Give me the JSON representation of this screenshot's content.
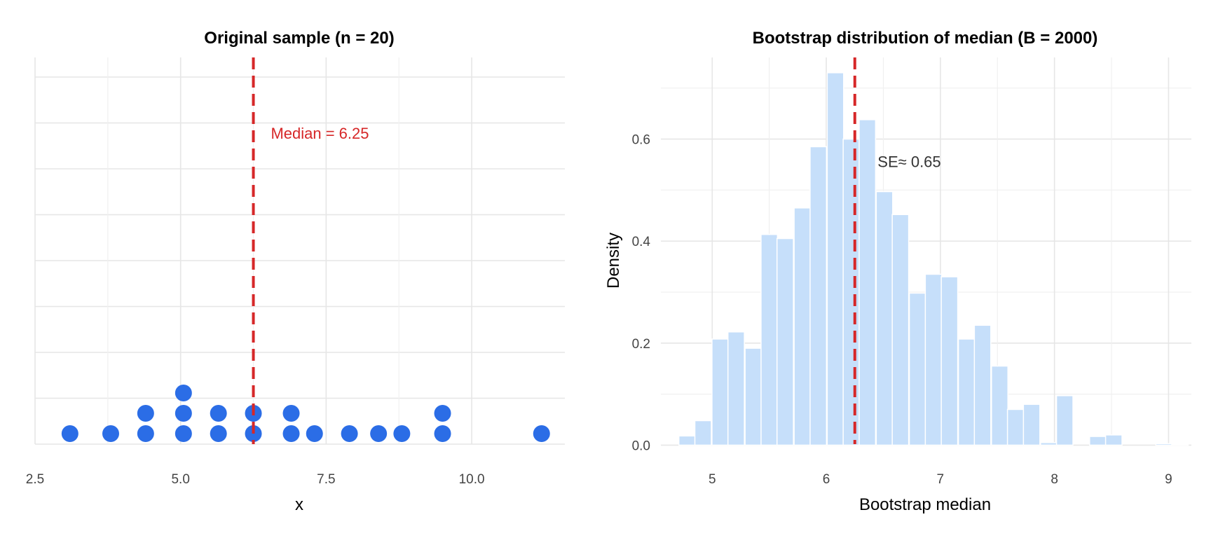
{
  "chart_data": [
    {
      "type": "scatter",
      "variant": "dot-stack",
      "title": "Original sample (n = 20)",
      "xlabel": "x",
      "ylabel": "",
      "xlim": [
        2.5,
        11.6
      ],
      "xticks": [
        2.5,
        5.0,
        7.5,
        10.0
      ],
      "xtick_labels": [
        "2.5",
        "5.0",
        "7.5",
        "10.0"
      ],
      "grid": true,
      "point_color": "#2b6de6",
      "points": [
        {
          "x": 3.1,
          "level": 1
        },
        {
          "x": 3.8,
          "level": 1
        },
        {
          "x": 4.4,
          "level": 1
        },
        {
          "x": 4.4,
          "level": 2
        },
        {
          "x": 5.05,
          "level": 1
        },
        {
          "x": 5.05,
          "level": 2
        },
        {
          "x": 5.05,
          "level": 3
        },
        {
          "x": 5.65,
          "level": 1
        },
        {
          "x": 5.65,
          "level": 2
        },
        {
          "x": 6.25,
          "level": 1
        },
        {
          "x": 6.25,
          "level": 2
        },
        {
          "x": 6.9,
          "level": 1
        },
        {
          "x": 6.9,
          "level": 2
        },
        {
          "x": 7.3,
          "level": 1
        },
        {
          "x": 7.9,
          "level": 1
        },
        {
          "x": 8.4,
          "level": 1
        },
        {
          "x": 8.8,
          "level": 1
        },
        {
          "x": 9.5,
          "level": 1
        },
        {
          "x": 9.5,
          "level": 2
        },
        {
          "x": 11.2,
          "level": 1
        }
      ],
      "reference_line": {
        "x": 6.25,
        "color": "#d62728",
        "style": "dashed"
      },
      "annotation": {
        "text": "Median = 6.25",
        "x": 6.55,
        "color": "#d62728"
      }
    },
    {
      "type": "bar",
      "variant": "histogram",
      "title": "Bootstrap distribution of median (B = 2000)",
      "xlabel": "Bootstrap median",
      "ylabel": "Density",
      "xlim": [
        4.55,
        9.2
      ],
      "ylim": [
        -0.02,
        0.76
      ],
      "xticks": [
        5,
        6,
        7,
        8,
        9
      ],
      "xtick_labels": [
        "5",
        "6",
        "7",
        "8",
        "9"
      ],
      "yticks": [
        0.0,
        0.2,
        0.4,
        0.6
      ],
      "ytick_labels": [
        "0.0",
        "0.2",
        "0.4",
        "0.6"
      ],
      "grid": true,
      "bar_color": "#c6dffa",
      "bin_width": 0.144,
      "bins": [
        {
          "x": 4.78,
          "density": 0.018
        },
        {
          "x": 4.92,
          "density": 0.048
        },
        {
          "x": 5.07,
          "density": 0.208
        },
        {
          "x": 5.21,
          "density": 0.222
        },
        {
          "x": 5.36,
          "density": 0.19
        },
        {
          "x": 5.5,
          "density": 0.413
        },
        {
          "x": 5.64,
          "density": 0.405
        },
        {
          "x": 5.79,
          "density": 0.465
        },
        {
          "x": 5.93,
          "density": 0.585
        },
        {
          "x": 6.08,
          "density": 0.73
        },
        {
          "x": 6.22,
          "density": 0.6
        },
        {
          "x": 6.36,
          "density": 0.638
        },
        {
          "x": 6.51,
          "density": 0.497
        },
        {
          "x": 6.65,
          "density": 0.452
        },
        {
          "x": 6.8,
          "density": 0.298
        },
        {
          "x": 6.94,
          "density": 0.335
        },
        {
          "x": 7.08,
          "density": 0.33
        },
        {
          "x": 7.23,
          "density": 0.208
        },
        {
          "x": 7.37,
          "density": 0.235
        },
        {
          "x": 7.52,
          "density": 0.155
        },
        {
          "x": 7.66,
          "density": 0.07
        },
        {
          "x": 7.8,
          "density": 0.08
        },
        {
          "x": 7.95,
          "density": 0.005
        },
        {
          "x": 8.09,
          "density": 0.097
        },
        {
          "x": 8.24,
          "density": 0.0
        },
        {
          "x": 8.38,
          "density": 0.017
        },
        {
          "x": 8.52,
          "density": 0.02
        },
        {
          "x": 8.67,
          "density": 0.0
        },
        {
          "x": 8.81,
          "density": 0.0
        },
        {
          "x": 8.96,
          "density": 0.003
        },
        {
          "x": 9.1,
          "density": 0.002
        }
      ],
      "reference_line": {
        "x": 6.25,
        "color": "#d62728",
        "style": "dashed"
      },
      "annotation": {
        "text": "SE≈ 0.65",
        "x": 6.45,
        "y": 0.555,
        "color": "#333333"
      }
    }
  ]
}
